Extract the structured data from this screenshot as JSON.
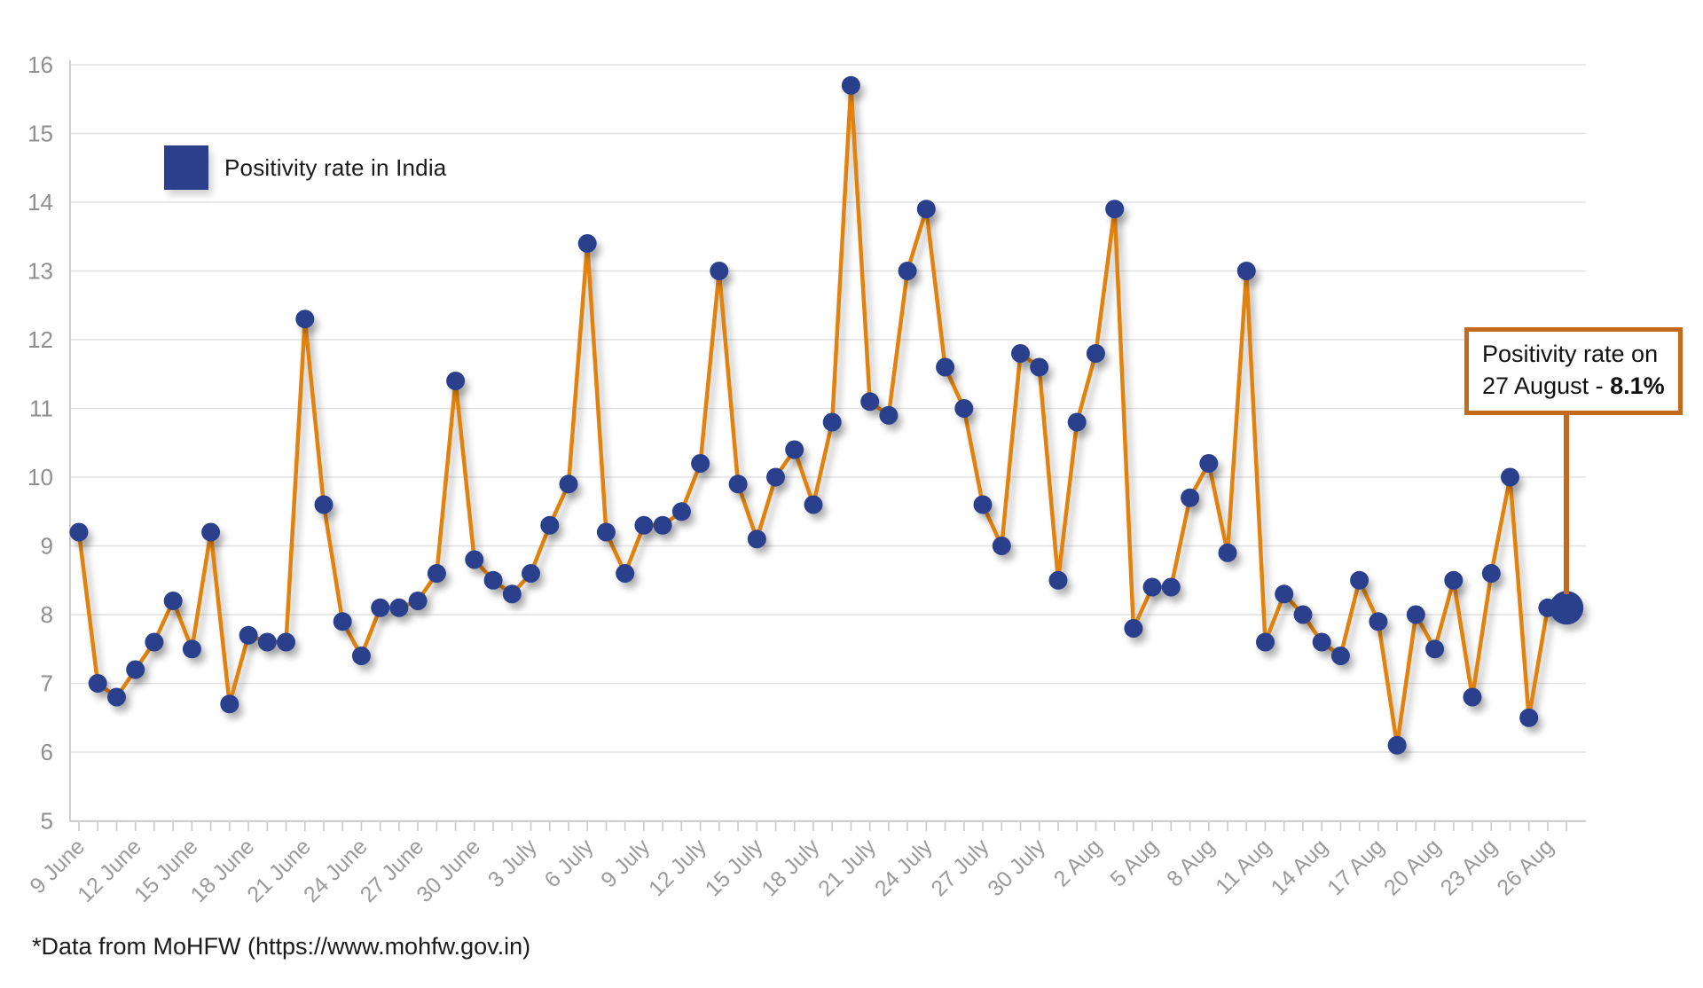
{
  "legend": {
    "label": "Positivity rate in India",
    "swatch_color": "#2b3f8c"
  },
  "annotation": {
    "line1": "Positivity rate on",
    "line2_prefix": "27 August - ",
    "line2_value": "8.1%",
    "border_color": "#c46a1d"
  },
  "footer": {
    "source_note": "*Data from MoHFW (https://www.mohfw.gov.in)"
  },
  "colors": {
    "line": "#e0820f",
    "point": "#2b3f8c",
    "gridline": "#e2e2e2",
    "axis": "#c9c9c9",
    "x_label": "#9a9a9a",
    "y_label": "#8f8f8f"
  },
  "chart_data": {
    "type": "line",
    "title": "",
    "xlabel": "",
    "ylabel": "",
    "ylim": [
      5,
      16
    ],
    "yticks": [
      5,
      6,
      7,
      8,
      9,
      10,
      11,
      12,
      13,
      14,
      15,
      16
    ],
    "grid": "horizontal-only",
    "legend_position": "top-left",
    "x_tick_interval": 3,
    "x_tick_labels": [
      "9 June",
      "12 June",
      "15 June",
      "18 June",
      "21 June",
      "24 June",
      "27 June",
      "30 June",
      "3 July",
      "6 July",
      "9 July",
      "12 July",
      "15 July",
      "18 July",
      "21 July",
      "24 July",
      "27 July",
      "30 July",
      "2 Aug",
      "5 Aug",
      "8 Aug",
      "11 Aug",
      "14 Aug",
      "17 Aug",
      "20 Aug",
      "23 Aug",
      "26 Aug"
    ],
    "x": [
      "9 June",
      "10 June",
      "11 June",
      "12 June",
      "13 June",
      "14 June",
      "15 June",
      "16 June",
      "17 June",
      "18 June",
      "19 June",
      "20 June",
      "21 June",
      "22 June",
      "23 June",
      "24 June",
      "25 June",
      "26 June",
      "27 June",
      "28 June",
      "29 June",
      "30 June",
      "1 July",
      "2 July",
      "3 July",
      "4 July",
      "5 July",
      "6 July",
      "7 July",
      "8 July",
      "9 July",
      "10 July",
      "11 July",
      "12 July",
      "13 July",
      "14 July",
      "15 July",
      "16 July",
      "17 July",
      "18 July",
      "19 July",
      "20 July",
      "21 July",
      "22 July",
      "23 July",
      "24 July",
      "25 July",
      "26 July",
      "27 July",
      "28 July",
      "29 July",
      "30 July",
      "31 July",
      "1 Aug",
      "2 Aug",
      "3 Aug",
      "4 Aug",
      "5 Aug",
      "6 Aug",
      "7 Aug",
      "8 Aug",
      "9 Aug",
      "10 Aug",
      "11 Aug",
      "12 Aug",
      "13 Aug",
      "14 Aug",
      "15 Aug",
      "16 Aug",
      "17 Aug",
      "18 Aug",
      "19 Aug",
      "20 Aug",
      "21 Aug",
      "22 Aug",
      "23 Aug",
      "24 Aug",
      "25 Aug",
      "26 Aug",
      "27 Aug"
    ],
    "series": [
      {
        "name": "Positivity rate in India",
        "color": "#e0820f",
        "point_color": "#2b3f8c",
        "values": [
          9.2,
          7.0,
          6.8,
          7.2,
          7.6,
          8.2,
          7.5,
          9.2,
          6.7,
          7.7,
          7.6,
          7.6,
          12.3,
          9.6,
          7.9,
          7.4,
          8.1,
          8.1,
          8.2,
          8.6,
          11.4,
          8.8,
          8.5,
          8.3,
          8.6,
          9.3,
          9.9,
          13.4,
          9.2,
          8.6,
          9.3,
          9.3,
          9.5,
          10.2,
          13.0,
          9.9,
          9.1,
          10.0,
          10.4,
          9.6,
          10.8,
          15.7,
          11.1,
          10.9,
          13.0,
          13.9,
          11.6,
          11.0,
          9.6,
          9.0,
          11.8,
          11.6,
          8.5,
          10.8,
          11.8,
          13.9,
          7.8,
          8.4,
          8.4,
          9.7,
          10.2,
          8.9,
          13.0,
          7.6,
          8.3,
          8.0,
          7.6,
          7.4,
          8.5,
          7.9,
          6.1,
          8.0,
          7.5,
          8.5,
          6.8,
          8.6,
          10.0,
          6.5,
          8.1,
          8.1
        ]
      }
    ],
    "highlight": {
      "index": 79,
      "x": "27 Aug",
      "value": 8.1,
      "callout_text": "Positivity rate on 27 August - 8.1%"
    }
  }
}
